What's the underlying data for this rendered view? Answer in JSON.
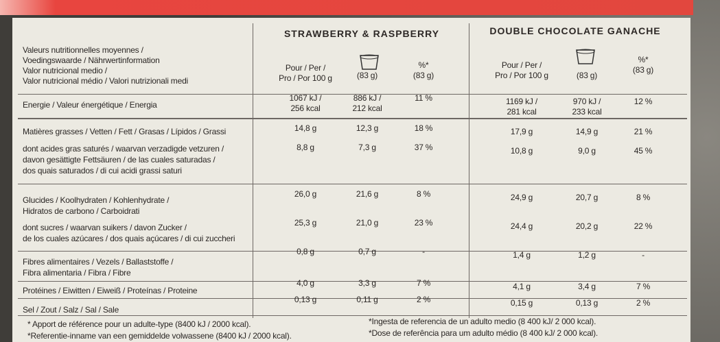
{
  "header": {
    "products": [
      "STRAWBERRY & RASPBERRY",
      "DOUBLE CHOCOLATE GANACHE"
    ],
    "label_lines": [
      "Valeurs nutritionnelles moyennes /",
      "Voedingswaarde / Nährwertinformation",
      "Valor nutricional medio /",
      "Valor nutricional médio / Valori nutrizionali medi"
    ],
    "columns": [
      [
        "Pour / Per /",
        "Pro / Por 100 g"
      ],
      [
        "(83 g)"
      ],
      [
        "%*",
        "(83 g)"
      ],
      [
        "Pour / Per /",
        "Pro / Por 100 g"
      ],
      [
        "(83 g)"
      ],
      [
        "%*",
        "(83 g)"
      ]
    ]
  },
  "table": {
    "rows": [
      {
        "label": [
          "Energie / Valeur énergétique / Energia"
        ],
        "cells": [
          [
            "1067 kJ /",
            "256 kcal"
          ],
          [
            "886 kJ /",
            "212 kcal"
          ],
          [
            "11 %"
          ],
          [
            "1169 kJ /",
            "281 kcal"
          ],
          [
            "970 kJ /",
            "233 kcal"
          ],
          [
            "12 %"
          ]
        ]
      },
      {
        "label": [
          "Matières grasses / Vetten / Fett / Grasas / Lípidos / Grassi"
        ],
        "cells": [
          [
            "14,8 g"
          ],
          [
            "12,3 g"
          ],
          [
            "18 %"
          ],
          [
            "17,9 g"
          ],
          [
            "14,9 g"
          ],
          [
            "21 %"
          ]
        ]
      },
      {
        "label": [
          "dont acides gras saturés / waarvan verzadigde vetzuren /",
          "davon gesättigte Fettsäuren / de las cuales saturadas /",
          "dos quais saturados / di cui acidi grassi saturi"
        ],
        "cells": [
          [
            "8,8 g"
          ],
          [
            "7,3 g"
          ],
          [
            "37 %"
          ],
          [
            "10,8 g"
          ],
          [
            "9,0 g"
          ],
          [
            "45 %"
          ]
        ]
      },
      {
        "label": [
          "Glucides / Koolhydraten / Kohlenhydrate /",
          "Hidratos de carbono / Carboidrati"
        ],
        "cells": [
          [
            "26,0 g"
          ],
          [
            "21,6 g"
          ],
          [
            "8 %"
          ],
          [
            "24,9 g"
          ],
          [
            "20,7 g"
          ],
          [
            "8 %"
          ]
        ]
      },
      {
        "label": [
          "dont sucres / waarvan suikers / davon Zucker /",
          "de los cuales azúcares / dos quais açúcares / di cui zuccheri"
        ],
        "cells": [
          [
            "25,3 g"
          ],
          [
            "21,0 g"
          ],
          [
            "23 %"
          ],
          [
            "24,4 g"
          ],
          [
            "20,2 g"
          ],
          [
            "22 %"
          ]
        ]
      },
      {
        "label": [
          "Fibres alimentaires / Vezels / Ballaststoffe /",
          "Fibra alimentaria / Fibra / Fibre"
        ],
        "cells": [
          [
            "0,8 g"
          ],
          [
            "0,7 g"
          ],
          [
            "-"
          ],
          [
            "1,4 g"
          ],
          [
            "1,2 g"
          ],
          [
            "-"
          ]
        ]
      },
      {
        "label": [
          "Protéines / Eiwitten / Eiweiß / Proteínas / Proteine"
        ],
        "cells": [
          [
            "4,0 g"
          ],
          [
            "3,3 g"
          ],
          [
            "7 %"
          ],
          [
            "4,1 g"
          ],
          [
            "3,4 g"
          ],
          [
            "7 %"
          ]
        ]
      },
      {
        "label": [
          "Sel / Zout / Salz / Sal / Sale"
        ],
        "cells": [
          [
            "0,13 g"
          ],
          [
            "0,11 g"
          ],
          [
            "2 %"
          ],
          [
            "0,15 g"
          ],
          [
            "0,13 g"
          ],
          [
            "2 %"
          ]
        ]
      }
    ]
  },
  "footnotes": {
    "left": [
      "* Apport de référence pour un adulte-type (8400 kJ / 2000 kcal).",
      "*Referentie-inname van een gemiddelde volwassene (8400 kJ / 2000 kcal)."
    ],
    "right": [
      "*Ingesta de referencia de un adulto medio (8 400 kJ/ 2 000 kcal).",
      "*Dose de referência para um adulto médio (8 400 kJ/ 2 000 kcal)."
    ]
  }
}
